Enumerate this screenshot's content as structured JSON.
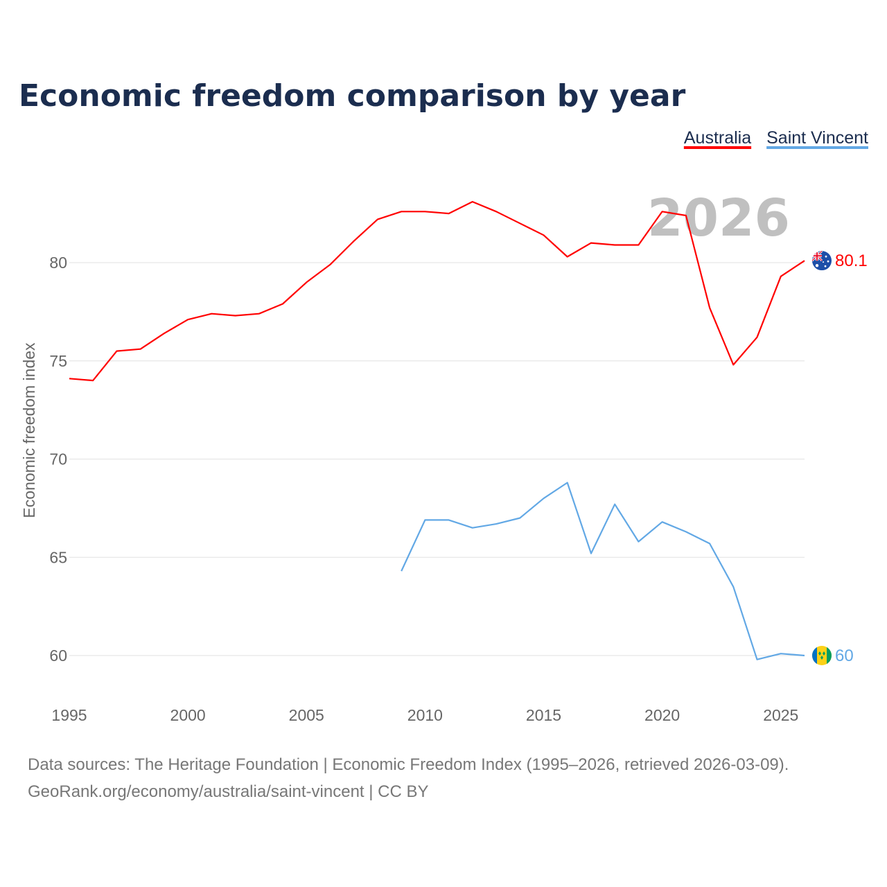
{
  "chart_data": {
    "type": "line",
    "title": "Economic freedom comparison by year",
    "xlabel": "",
    "ylabel": "Economic freedom index",
    "xlim": [
      1995,
      2026
    ],
    "ylim": [
      58,
      85
    ],
    "x_ticks": [
      1995,
      2000,
      2005,
      2010,
      2015,
      2020,
      2025
    ],
    "y_ticks": [
      60,
      65,
      70,
      75,
      80
    ],
    "grid": true,
    "legend_position": "top-right",
    "current_year_label": "2026",
    "series": [
      {
        "name": "Australia",
        "color": "#ff0000",
        "flag": "australia-flag",
        "end_label": "80.1",
        "x": [
          1995,
          1996,
          1997,
          1998,
          1999,
          2000,
          2001,
          2002,
          2003,
          2004,
          2005,
          2006,
          2007,
          2008,
          2009,
          2010,
          2011,
          2012,
          2013,
          2014,
          2015,
          2016,
          2017,
          2018,
          2019,
          2020,
          2021,
          2022,
          2023,
          2024,
          2025,
          2026
        ],
        "values": [
          74.1,
          74.0,
          75.5,
          75.6,
          76.4,
          77.1,
          77.4,
          77.3,
          77.4,
          77.9,
          79.0,
          79.9,
          81.1,
          82.2,
          82.6,
          82.6,
          82.5,
          83.1,
          82.6,
          82.0,
          81.4,
          80.3,
          81.0,
          80.9,
          80.9,
          82.6,
          82.4,
          77.7,
          74.8,
          76.2,
          79.3,
          80.1
        ]
      },
      {
        "name": "Saint Vincent",
        "color": "#62a8e5",
        "flag": "saint-vincent-flag",
        "end_label": "60",
        "x": [
          2009,
          2010,
          2011,
          2012,
          2013,
          2014,
          2015,
          2016,
          2017,
          2018,
          2019,
          2020,
          2021,
          2022,
          2023,
          2024,
          2025,
          2026
        ],
        "values": [
          64.3,
          66.9,
          66.9,
          66.5,
          66.7,
          67.0,
          68.0,
          68.8,
          65.2,
          67.7,
          65.8,
          66.8,
          66.3,
          65.7,
          63.5,
          59.8,
          60.1,
          60.0
        ]
      }
    ]
  },
  "footer": {
    "sources": "Data sources: The Heritage Foundation | Economic Freedom Index (1995–2026, retrieved 2026-03-09).",
    "credit": "GeoRank.org/economy/australia/saint-vincent | CC BY"
  }
}
